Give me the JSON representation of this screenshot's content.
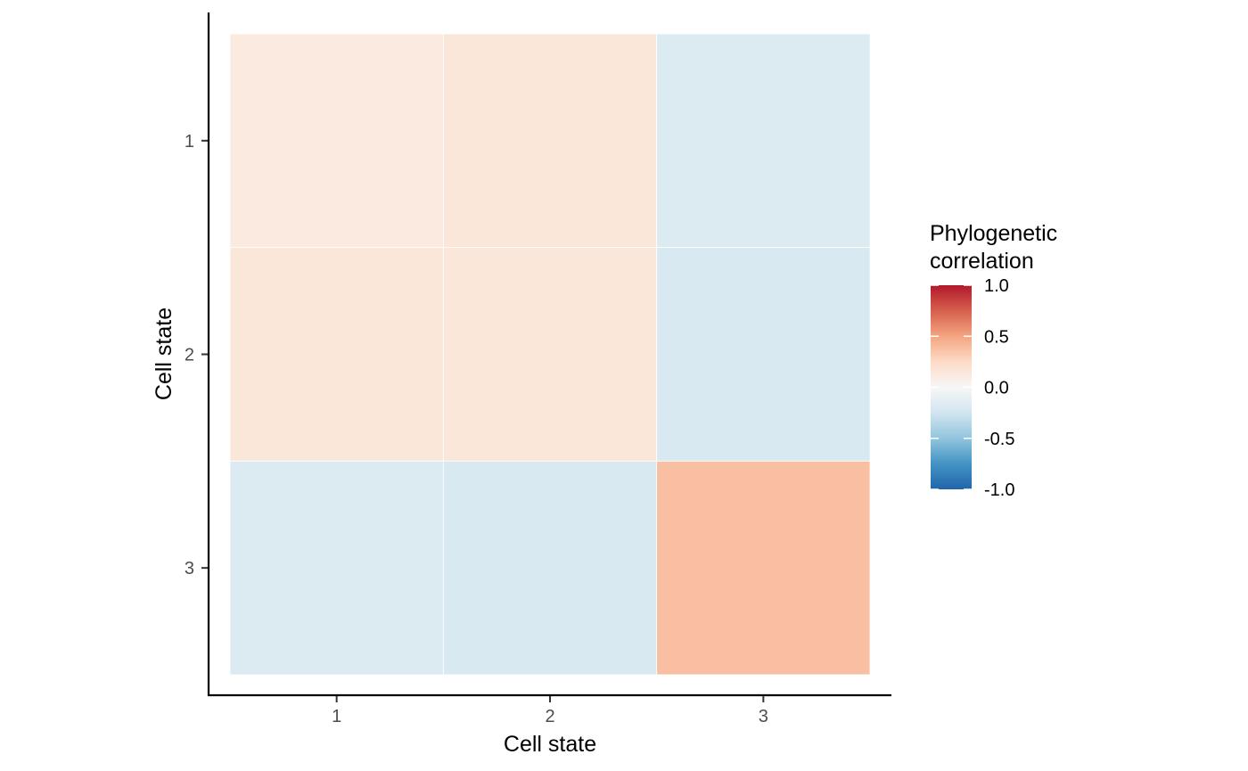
{
  "chart_data": {
    "type": "heatmap",
    "title": "",
    "xlabel": "Cell state",
    "ylabel": "Cell state",
    "x_categories": [
      "1",
      "2",
      "3"
    ],
    "y_categories": [
      "1",
      "2",
      "3"
    ],
    "matrix": [
      [
        0.12,
        0.15,
        -0.18
      ],
      [
        0.15,
        0.15,
        -0.2
      ],
      [
        -0.18,
        -0.2,
        0.38
      ]
    ],
    "legend": {
      "title_lines": [
        "Phylogenetic",
        "correlation"
      ],
      "ticks": [
        1.0,
        0.5,
        0.0,
        -0.5,
        -1.0
      ],
      "tick_labels": [
        "1.0",
        "0.5",
        "0.0",
        "-0.5",
        "-1.0"
      ],
      "range": [
        -1,
        1
      ],
      "placement": "right"
    },
    "color_scale": {
      "low": "#2166AC",
      "mid": "#F7F7F7",
      "high": "#B2182B",
      "stops": [
        "#2166AC",
        "#4393C3",
        "#92C5DE",
        "#D1E5F0",
        "#F7F7F7",
        "#FDDBC7",
        "#F4A582",
        "#D6604D",
        "#B2182B"
      ]
    },
    "grid": false
  }
}
